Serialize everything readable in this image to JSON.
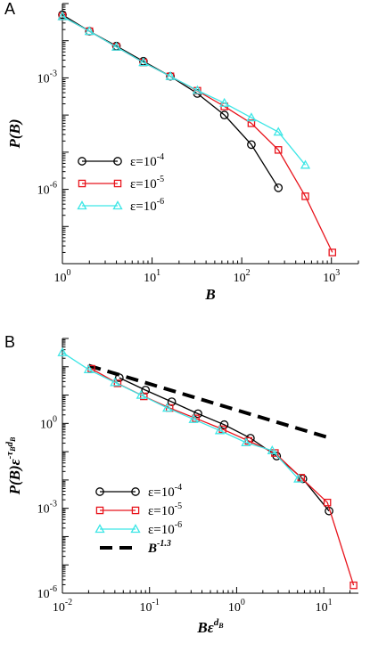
{
  "chart_data": [
    {
      "panel": "A",
      "type": "line",
      "xlabel": "B",
      "ylabel": "P(B)",
      "xscale": "log",
      "yscale": "log",
      "xlim": [
        1,
        2000
      ],
      "ylim": [
        1e-08,
        0.1
      ],
      "xticks": [
        {
          "v": 1,
          "m": "10",
          "e": "0"
        },
        {
          "v": 10,
          "m": "10",
          "e": "1"
        },
        {
          "v": 100,
          "m": "10",
          "e": "2"
        },
        {
          "v": 1000,
          "m": "10",
          "e": "3"
        }
      ],
      "yticks": [
        {
          "v": 0.001,
          "m": "10",
          "e": "-3"
        },
        {
          "v": 1e-06,
          "m": "10",
          "e": "-6"
        }
      ],
      "legend": {
        "placement": "left-middle"
      },
      "series": [
        {
          "name": "ε=10",
          "name_exp": "-4",
          "color": "#000000",
          "marker": "circle",
          "x": [
            1,
            2,
            4,
            8,
            16,
            32,
            64,
            128,
            256
          ],
          "y": [
            0.05,
            0.018,
            0.0072,
            0.0028,
            0.0011,
            0.00038,
            0.0001,
            1.6e-05,
            1.1e-06
          ]
        },
        {
          "name": "ε=10",
          "name_exp": "-5",
          "color": "#e8141c",
          "marker": "square",
          "x": [
            1,
            2,
            4,
            8,
            16,
            32,
            64,
            128,
            256,
            512,
            1024
          ],
          "y": [
            0.045,
            0.018,
            0.0068,
            0.0026,
            0.0011,
            0.00045,
            0.00017,
            6e-05,
            1.15e-05,
            6.5e-07,
            2e-08
          ]
        },
        {
          "name": "ε=10",
          "name_exp": "-6",
          "color": "#3ee6e6",
          "marker": "triangle",
          "x": [
            1,
            2,
            4,
            8,
            16,
            32,
            64,
            128,
            256,
            512
          ],
          "y": [
            0.045,
            0.018,
            0.0068,
            0.0026,
            0.0011,
            0.00046,
            0.00021,
            8.5e-05,
            3.5e-05,
            4.5e-06
          ]
        }
      ]
    },
    {
      "panel": "B",
      "type": "line",
      "xlabel": "Bε",
      "xlabel_exp": "d",
      "xlabel_exp_sub": "B",
      "ylabel": "P(B)ε",
      "ylabel_exp": "-τ",
      "ylabel_exp_sub": "B",
      "ylabel_exp2": "d",
      "ylabel_exp2_sub": "B",
      "xscale": "log",
      "yscale": "log",
      "xlim": [
        0.01,
        25
      ],
      "ylim": [
        1e-06,
        1000
      ],
      "xticks": [
        {
          "v": 0.01,
          "m": "10",
          "e": "-2"
        },
        {
          "v": 0.1,
          "m": "10",
          "e": "-1"
        },
        {
          "v": 1,
          "m": "10",
          "e": "0"
        },
        {
          "v": 10,
          "m": "10",
          "e": "1"
        }
      ],
      "yticks": [
        {
          "v": 1,
          "m": "10",
          "e": "0"
        },
        {
          "v": 0.001,
          "m": "10",
          "e": "-3"
        },
        {
          "v": 1e-06,
          "m": "10",
          "e": "-6"
        }
      ],
      "legend": {
        "placement": "bottom-left"
      },
      "series": [
        {
          "name": "ε=10",
          "name_exp": "-4",
          "color": "#000000",
          "marker": "circle",
          "x": [
            0.045,
            0.09,
            0.18,
            0.36,
            0.72,
            1.44,
            2.88,
            5.76,
            11.5
          ],
          "y": [
            41,
            15,
            5.8,
            2.2,
            0.9,
            0.3,
            0.07,
            0.011,
            0.0008
          ]
        },
        {
          "name": "ε=10",
          "name_exp": "-5",
          "color": "#e8141c",
          "marker": "square",
          "x": [
            0.0215,
            0.043,
            0.086,
            0.17,
            0.34,
            0.69,
            1.37,
            2.75,
            5.5,
            11,
            22
          ],
          "y": [
            85,
            26,
            9,
            3.5,
            1.5,
            0.62,
            0.24,
            0.09,
            0.012,
            0.0016,
            1.9e-06
          ]
        },
        {
          "name": "ε=10",
          "name_exp": "-6",
          "color": "#3ee6e6",
          "marker": "triangle",
          "x": [
            0.01,
            0.02,
            0.04,
            0.08,
            0.16,
            0.32,
            0.64,
            1.28,
            2.56,
            5.12
          ],
          "y": [
            320,
            80,
            28,
            10,
            3.5,
            1.4,
            0.56,
            0.21,
            0.11,
            0.011
          ]
        }
      ],
      "reference_line": {
        "name": "B",
        "name_exp": "-1.3",
        "color": "#000000",
        "style": "dashed",
        "x": [
          0.02,
          11.5
        ],
        "y": [
          110,
          0.31
        ]
      }
    }
  ],
  "labels": {
    "panel_a": "A",
    "panel_b": "B"
  }
}
